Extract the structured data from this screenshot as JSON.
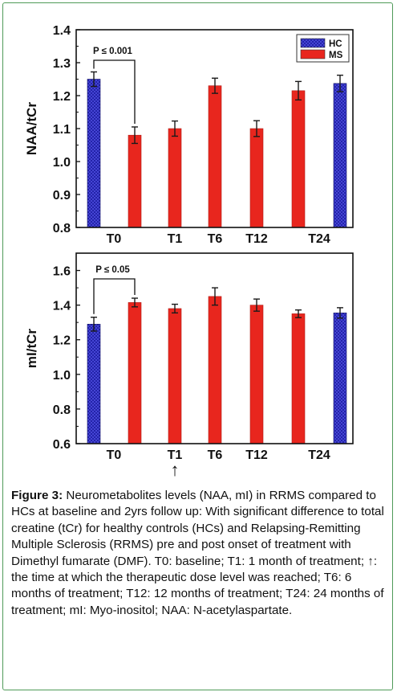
{
  "chart_data": [
    {
      "type": "bar",
      "ylabel": "NAA/tCr",
      "ylim": [
        0.8,
        1.4
      ],
      "yticks": [
        "0.8",
        "0.9",
        "1.0",
        "1.1",
        "1.2",
        "1.3",
        "1.4"
      ],
      "legend": {
        "placement": "top-right",
        "entries": [
          "HC",
          "MS"
        ]
      },
      "categories": [
        "T0",
        "T1",
        "T6",
        "T12",
        "T24"
      ],
      "bars": [
        {
          "group": "HC",
          "category": "T0",
          "value": 1.25,
          "error": 0.022
        },
        {
          "group": "MS",
          "category": "T0",
          "value": 1.08,
          "error": 0.025
        },
        {
          "group": "MS",
          "category": "T1",
          "value": 1.1,
          "error": 0.023
        },
        {
          "group": "MS",
          "category": "T6",
          "value": 1.23,
          "error": 0.023
        },
        {
          "group": "MS",
          "category": "T12",
          "value": 1.1,
          "error": 0.024
        },
        {
          "group": "MS",
          "category": "T24",
          "value": 1.215,
          "error": 0.028
        },
        {
          "group": "HC",
          "category": "T24",
          "value": 1.237,
          "error": 0.025
        }
      ],
      "annotation": {
        "text": "P ≤ 0.001",
        "from": "T0 HC",
        "to": "T0 MS"
      }
    },
    {
      "type": "bar",
      "ylabel": "mI/tCr",
      "ylim": [
        0.6,
        1.7
      ],
      "yticks": [
        "0.6",
        "0.8",
        "1.0",
        "1.2",
        "1.4",
        "1.6"
      ],
      "categories": [
        "T0",
        "T1",
        "T6",
        "T12",
        "T24"
      ],
      "bars": [
        {
          "group": "HC",
          "category": "T0",
          "value": 1.29,
          "error": 0.04
        },
        {
          "group": "MS",
          "category": "T0",
          "value": 1.415,
          "error": 0.025
        },
        {
          "group": "MS",
          "category": "T1",
          "value": 1.38,
          "error": 0.025
        },
        {
          "group": "MS",
          "category": "T6",
          "value": 1.45,
          "error": 0.05
        },
        {
          "group": "MS",
          "category": "T12",
          "value": 1.4,
          "error": 0.035
        },
        {
          "group": "MS",
          "category": "T24",
          "value": 1.35,
          "error": 0.022
        },
        {
          "group": "HC",
          "category": "T24",
          "value": 1.355,
          "error": 0.03
        }
      ],
      "annotation": {
        "text": "P ≤ 0.05",
        "from": "T0 HC",
        "to": "T0 MS"
      },
      "marker": {
        "category": "T1",
        "symbol": "↑"
      }
    }
  ],
  "colors": {
    "hc": "#1a1a9e",
    "ms": "#e8261e",
    "frame": "#4f9a58",
    "errorbar": "#1a1a1a"
  },
  "caption": {
    "label": "Figure 3:",
    "text": " Neurometabolites levels (NAA, mI) in RRMS compared to HCs at baseline and 2yrs follow up: With significant difference to total creatine (tCr) for healthy controls (HCs) and Relapsing-Remitting Multiple Sclerosis (RRMS) pre and post onset of treatment with Dimethyl fumarate (DMF). T0: baseline; T1: 1 month of treatment; ↑: the time at which the therapeutic dose level was reached; T6: 6 months of treatment; T12: 12 months of treatment; T24: 24 months of treatment; mI: Myo-inositol; NAA: N-acetylaspartate."
  }
}
